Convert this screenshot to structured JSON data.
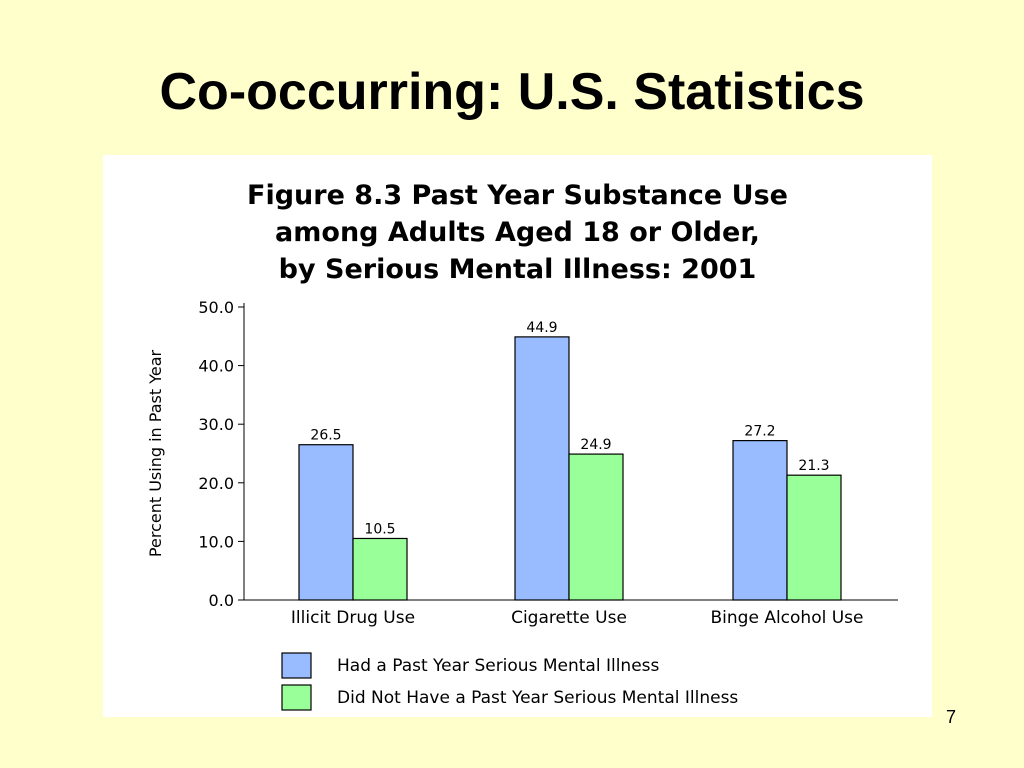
{
  "slide": {
    "title": "Co-occurring: U.S. Statistics",
    "page_number": "7",
    "background_color": "#ffffcc"
  },
  "chart_data": {
    "type": "bar",
    "title_lines": [
      "Figure 8.3  Past Year Substance Use",
      "among Adults Aged 18 or Older,",
      "by Serious Mental Illness: 2001"
    ],
    "xlabel": "",
    "ylabel": "Percent Using in Past Year",
    "ylim": [
      0,
      50
    ],
    "yticks": [
      "0.0",
      "10.0",
      "20.0",
      "30.0",
      "40.0",
      "50.0"
    ],
    "categories": [
      "Illicit Drug Use",
      "Cigarette Use",
      "Binge Alcohol Use"
    ],
    "series": [
      {
        "name": "Had a Past Year Serious Mental Illness",
        "color": "#99bbff",
        "values": [
          26.5,
          44.9,
          27.2
        ],
        "labels": [
          "26.5",
          "44.9",
          "27.2"
        ]
      },
      {
        "name": "Did Not Have a Past Year Serious Mental Illness",
        "color": "#99ff99",
        "values": [
          10.5,
          24.9,
          21.3
        ],
        "labels": [
          "10.5",
          "24.9",
          "21.3"
        ]
      }
    ],
    "grid": false,
    "legend_position": "bottom"
  }
}
